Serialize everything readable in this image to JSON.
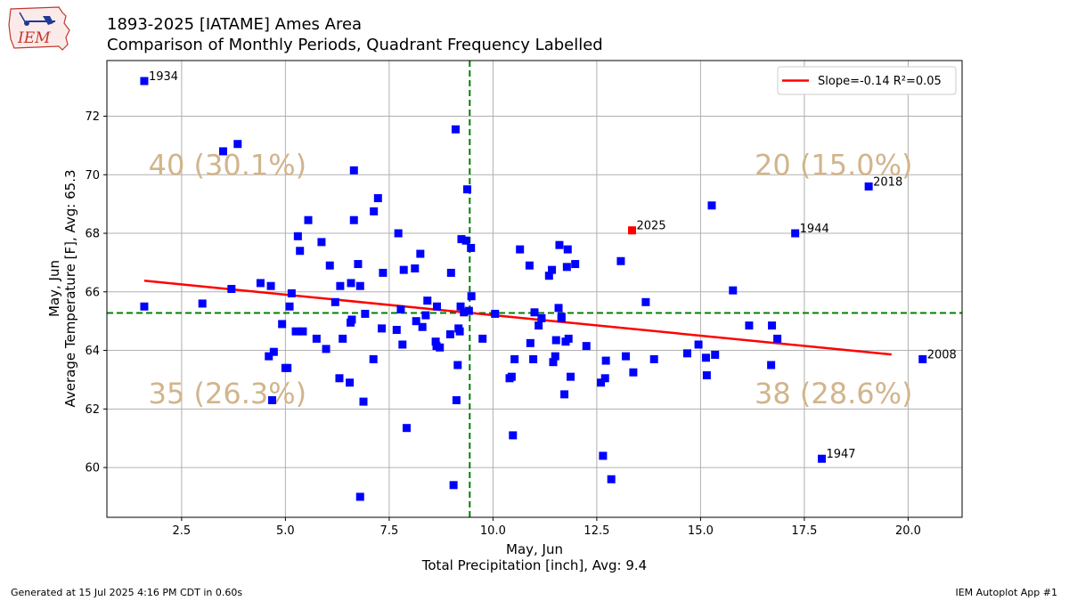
{
  "header": {
    "title_line1": "1893-2025 [IATAME] Ames Area",
    "title_line2": "Comparison of Monthly Periods, Quadrant Frequency Labelled"
  },
  "logo": {
    "text": "IEM"
  },
  "footer": {
    "generated": "Generated at 15 Jul 2025 4:16 PM CDT in 0.60s",
    "app": "IEM Autoplot App #1"
  },
  "colors": {
    "points": "#0000ff",
    "highlight": "#ff0000",
    "regression": "#ff0000",
    "average_lines": "#008000",
    "quadrant_text": "#d2b48c"
  },
  "chart_data": {
    "type": "scatter",
    "xlabel_line1": "May, Jun",
    "xlabel_line2": "Total Precipitation [inch], Avg: 9.4",
    "ylabel_line1": "May, Jun",
    "ylabel_line2": "Average Temperature [F], Avg: 65.3",
    "xlim": [
      0.7,
      21.3
    ],
    "ylim": [
      58.3,
      73.9
    ],
    "xticks": [
      2.5,
      5.0,
      7.5,
      10.0,
      12.5,
      15.0,
      17.5,
      20.0
    ],
    "xtick_labels": [
      "2.5",
      "5.0",
      "7.5",
      "10.0",
      "12.5",
      "15.0",
      "17.5",
      "20.0"
    ],
    "yticks": [
      60,
      62,
      64,
      66,
      68,
      70,
      72
    ],
    "ytick_labels": [
      "60",
      "62",
      "64",
      "66",
      "68",
      "70",
      "72"
    ],
    "grid": true,
    "avg_x": 9.44,
    "avg_y": 65.28,
    "legend": {
      "position": "top-right",
      "label": "Slope=-0.14 R²=0.05"
    },
    "regression": {
      "x": [
        1.6,
        19.6
      ],
      "y": [
        66.38,
        63.86
      ]
    },
    "quadrants": [
      {
        "label": "40 (30.1%)",
        "x": 1.7,
        "y": 70.0
      },
      {
        "label": "20 (15.0%)",
        "x": 16.3,
        "y": 70.0
      },
      {
        "label": "35 (26.3%)",
        "x": 1.7,
        "y": 62.2
      },
      {
        "label": "38 (28.6%)",
        "x": 16.3,
        "y": 62.2
      }
    ],
    "annotations": [
      {
        "label": "1934",
        "x": 1.6,
        "y": 73.2
      },
      {
        "label": "2018",
        "x": 19.05,
        "y": 69.6
      },
      {
        "label": "2025",
        "x": 13.35,
        "y": 68.1
      },
      {
        "label": "1944",
        "x": 17.28,
        "y": 68.0
      },
      {
        "label": "2008",
        "x": 20.35,
        "y": 63.7
      },
      {
        "label": "1947",
        "x": 17.92,
        "y": 60.3
      }
    ],
    "highlight_point": {
      "name": "2025",
      "x": 13.35,
      "y": 68.1
    },
    "series": [
      {
        "name": "years",
        "points": [
          [
            1.6,
            73.2
          ],
          [
            1.6,
            65.5
          ],
          [
            3.0,
            65.6
          ],
          [
            3.5,
            70.8
          ],
          [
            3.85,
            71.05
          ],
          [
            3.7,
            66.1
          ],
          [
            4.4,
            66.3
          ],
          [
            4.65,
            66.2
          ],
          [
            4.6,
            63.8
          ],
          [
            4.72,
            63.95
          ],
          [
            4.68,
            62.3
          ],
          [
            4.92,
            64.9
          ],
          [
            5.0,
            63.4
          ],
          [
            5.05,
            63.4
          ],
          [
            5.1,
            65.5
          ],
          [
            5.15,
            65.95
          ],
          [
            5.25,
            64.65
          ],
          [
            5.3,
            67.9
          ],
          [
            5.35,
            67.4
          ],
          [
            5.42,
            64.65
          ],
          [
            5.55,
            68.45
          ],
          [
            5.75,
            64.4
          ],
          [
            5.87,
            67.7
          ],
          [
            5.98,
            64.05
          ],
          [
            6.07,
            66.9
          ],
          [
            6.2,
            65.65
          ],
          [
            6.3,
            63.05
          ],
          [
            6.32,
            66.2
          ],
          [
            6.38,
            64.4
          ],
          [
            6.55,
            62.9
          ],
          [
            6.57,
            64.95
          ],
          [
            6.58,
            66.3
          ],
          [
            6.6,
            65.05
          ],
          [
            6.65,
            70.15
          ],
          [
            6.65,
            68.45
          ],
          [
            6.75,
            66.95
          ],
          [
            6.8,
            66.2
          ],
          [
            6.8,
            59.0
          ],
          [
            6.88,
            62.25
          ],
          [
            6.92,
            65.25
          ],
          [
            7.12,
            63.7
          ],
          [
            7.13,
            68.75
          ],
          [
            7.23,
            69.2
          ],
          [
            7.32,
            64.75
          ],
          [
            7.35,
            66.65
          ],
          [
            7.68,
            64.7
          ],
          [
            7.72,
            68.0
          ],
          [
            7.78,
            65.4
          ],
          [
            7.82,
            64.2
          ],
          [
            7.85,
            66.75
          ],
          [
            7.92,
            61.35
          ],
          [
            8.12,
            66.8
          ],
          [
            8.15,
            65.0
          ],
          [
            8.25,
            67.3
          ],
          [
            8.3,
            64.8
          ],
          [
            8.38,
            65.2
          ],
          [
            8.42,
            65.7
          ],
          [
            8.62,
            64.3
          ],
          [
            8.64,
            64.15
          ],
          [
            8.65,
            65.5
          ],
          [
            8.72,
            64.1
          ],
          [
            8.97,
            64.55
          ],
          [
            8.99,
            66.65
          ],
          [
            9.05,
            59.4
          ],
          [
            9.1,
            71.55
          ],
          [
            9.12,
            62.3
          ],
          [
            9.15,
            63.5
          ],
          [
            9.17,
            64.75
          ],
          [
            9.2,
            64.65
          ],
          [
            9.22,
            65.5
          ],
          [
            9.24,
            67.8
          ],
          [
            9.3,
            65.3
          ],
          [
            9.35,
            67.75
          ],
          [
            9.38,
            69.5
          ],
          [
            9.42,
            65.35
          ],
          [
            9.47,
            67.5
          ],
          [
            9.48,
            65.85
          ],
          [
            9.75,
            64.4
          ],
          [
            10.05,
            65.25
          ],
          [
            10.4,
            63.05
          ],
          [
            10.45,
            63.1
          ],
          [
            10.48,
            61.1
          ],
          [
            10.52,
            63.7
          ],
          [
            10.65,
            67.45
          ],
          [
            10.88,
            66.9
          ],
          [
            10.9,
            64.25
          ],
          [
            10.97,
            63.7
          ],
          [
            11.0,
            65.3
          ],
          [
            11.1,
            64.85
          ],
          [
            11.17,
            65.1
          ],
          [
            11.35,
            66.55
          ],
          [
            11.42,
            66.75
          ],
          [
            11.45,
            63.6
          ],
          [
            11.5,
            63.8
          ],
          [
            11.52,
            64.35
          ],
          [
            11.58,
            65.45
          ],
          [
            11.6,
            67.6
          ],
          [
            11.65,
            65.15
          ],
          [
            11.65,
            65.1
          ],
          [
            11.72,
            62.5
          ],
          [
            11.75,
            64.3
          ],
          [
            11.78,
            66.85
          ],
          [
            11.8,
            67.45
          ],
          [
            11.82,
            64.4
          ],
          [
            11.87,
            63.1
          ],
          [
            11.98,
            66.95
          ],
          [
            12.25,
            64.15
          ],
          [
            12.6,
            62.9
          ],
          [
            12.65,
            60.4
          ],
          [
            12.7,
            63.05
          ],
          [
            12.72,
            63.65
          ],
          [
            12.85,
            59.6
          ],
          [
            13.08,
            67.05
          ],
          [
            13.2,
            63.8
          ],
          [
            13.38,
            63.25
          ],
          [
            13.68,
            65.65
          ],
          [
            13.88,
            63.7
          ],
          [
            14.68,
            63.9
          ],
          [
            14.95,
            64.2
          ],
          [
            15.13,
            63.75
          ],
          [
            15.15,
            63.15
          ],
          [
            15.27,
            68.95
          ],
          [
            15.35,
            63.85
          ],
          [
            15.78,
            66.05
          ],
          [
            16.17,
            64.85
          ],
          [
            16.7,
            63.5
          ],
          [
            16.72,
            64.85
          ],
          [
            16.85,
            64.4
          ],
          [
            17.28,
            68.0
          ],
          [
            17.92,
            60.3
          ],
          [
            19.05,
            69.6
          ],
          [
            20.35,
            63.7
          ]
        ]
      }
    ]
  }
}
